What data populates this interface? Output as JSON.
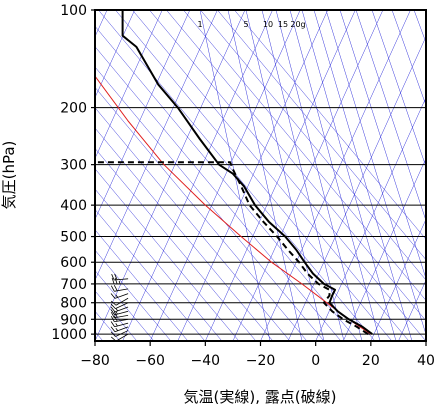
{
  "chart_data": {
    "type": "line",
    "title": "",
    "xlabel": "気温(実線), 露点(破線)",
    "ylabel": "気圧(hPa)",
    "xlim": [
      -80,
      40
    ],
    "ylim": [
      1050,
      100
    ],
    "yscale": "log",
    "grid": true,
    "x_ticks": [
      "−80",
      "−60",
      "−40",
      "−20",
      "0",
      "20",
      "40"
    ],
    "y_ticks": [
      "100",
      "200",
      "300",
      "400",
      "500",
      "600",
      "700",
      "800",
      "900",
      "1000"
    ],
    "mixing_ratio_labels": [
      "1",
      "5",
      "10",
      "15",
      "20g"
    ],
    "colors": {
      "temperature": "#000000",
      "dewpoint": "#000000",
      "reference_curve": "#e02020",
      "isotherms": "#3a3adc",
      "background_lines": "#3a3adc",
      "wind_barbs": "#000000"
    },
    "series": [
      {
        "key": "temperature",
        "style": "solid",
        "points": [
          [
            20.5,
            1000
          ],
          [
            17,
            950
          ],
          [
            12,
            900
          ],
          [
            8,
            850
          ],
          [
            5,
            800
          ],
          [
            6,
            760
          ],
          [
            7,
            730
          ],
          [
            3,
            700
          ],
          [
            -1,
            650
          ],
          [
            -4,
            600
          ],
          [
            -7,
            550
          ],
          [
            -11,
            500
          ],
          [
            -17,
            450
          ],
          [
            -22,
            400
          ],
          [
            -26,
            350
          ],
          [
            -30,
            320
          ],
          [
            -35,
            300
          ],
          [
            -42,
            250
          ],
          [
            -50,
            200
          ],
          [
            -57,
            170
          ],
          [
            -65,
            130
          ],
          [
            -70,
            120
          ],
          [
            -70,
            100
          ]
        ]
      },
      {
        "key": "dewpoint",
        "style": "dashed",
        "points": [
          [
            19,
            1000
          ],
          [
            15,
            950
          ],
          [
            10,
            900
          ],
          [
            6,
            850
          ],
          [
            3,
            800
          ],
          [
            5,
            760
          ],
          [
            5,
            730
          ],
          [
            1,
            700
          ],
          [
            -3,
            650
          ],
          [
            -6,
            600
          ],
          [
            -10,
            550
          ],
          [
            -14,
            500
          ],
          [
            -19,
            450
          ],
          [
            -24,
            400
          ],
          [
            -27,
            350
          ],
          [
            -30,
            310
          ],
          [
            -31,
            295
          ],
          [
            -80,
            295
          ]
        ]
      },
      {
        "key": "reference_curve",
        "style": "solid",
        "points": [
          [
            20,
            1000
          ],
          [
            12,
            900
          ],
          [
            4,
            800
          ],
          [
            -5,
            700
          ],
          [
            -16,
            600
          ],
          [
            -27,
            500
          ],
          [
            -40,
            400
          ],
          [
            -55,
            300
          ],
          [
            -68,
            220
          ],
          [
            -80,
            160
          ]
        ]
      }
    ],
    "wind_barbs": {
      "x_position": -68,
      "levels": [
        1000,
        975,
        950,
        925,
        900,
        875,
        850,
        825,
        800,
        775,
        750,
        725,
        700,
        675
      ],
      "speeds_kt": [
        10,
        12,
        15,
        18,
        20,
        22,
        18,
        15,
        12,
        10,
        15,
        20,
        25,
        20
      ],
      "directions_deg": [
        240,
        245,
        250,
        255,
        260,
        260,
        255,
        250,
        245,
        240,
        250,
        260,
        270,
        265
      ]
    }
  }
}
